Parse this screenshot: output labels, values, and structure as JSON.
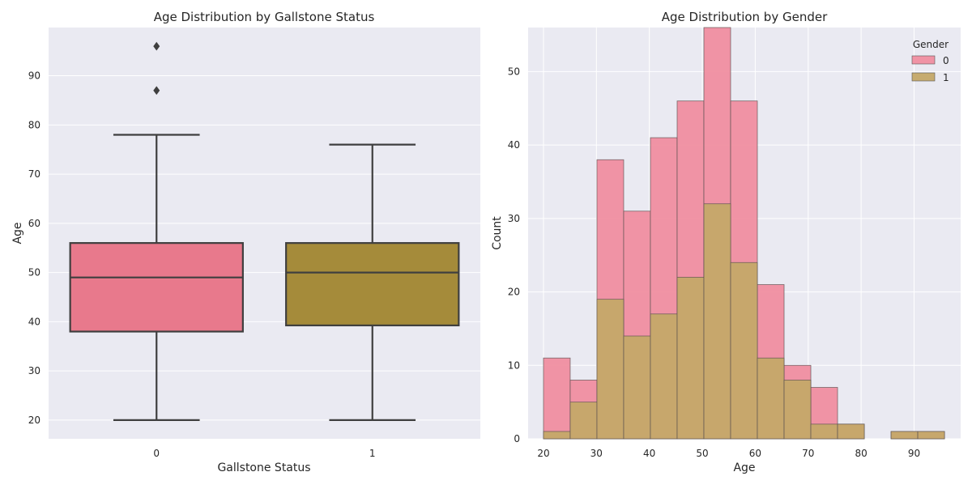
{
  "chart_data": [
    {
      "type": "box",
      "title": "Age Distribution by Gallstone Status",
      "xlabel": "Gallstone Status",
      "ylabel": "Age",
      "categories": [
        "0",
        "1"
      ],
      "ylim": [
        16.2,
        99.8
      ],
      "yticks": [
        20,
        30,
        40,
        50,
        60,
        70,
        80,
        90
      ],
      "grid": true,
      "boxes": [
        {
          "category": "0",
          "color": "#e8798c",
          "whisker_low": 20,
          "q1": 38,
          "median": 49,
          "q3": 56,
          "whisker_high": 78,
          "outliers": [
            87,
            96
          ]
        },
        {
          "category": "1",
          "color": "#a58b3a",
          "whisker_low": 20,
          "q1": 39.25,
          "median": 50,
          "q3": 56,
          "whisker_high": 76,
          "outliers": []
        }
      ]
    },
    {
      "type": "histogram",
      "title": "Age Distribution by Gender",
      "xlabel": "Age",
      "ylabel": "Count",
      "xlim": [
        17.1,
        98.8
      ],
      "ylim": [
        0,
        56
      ],
      "xticks": [
        20,
        30,
        40,
        50,
        60,
        70,
        80,
        90
      ],
      "yticks": [
        0,
        10,
        20,
        30,
        40,
        50
      ],
      "grid": true,
      "legend": {
        "title": "Gender",
        "placement": "top-right"
      },
      "bin_edges": [
        20,
        25.05,
        30.1,
        35.15,
        40.2,
        45.25,
        50.3,
        55.35,
        60.4,
        65.45,
        70.5,
        75.55,
        80.6,
        85.65,
        90.7,
        95.75
      ],
      "series": [
        {
          "name": "0",
          "color": "#f08ea0",
          "values": [
            11,
            8,
            38,
            31,
            41,
            46,
            56,
            46,
            21,
            10,
            7,
            2,
            0,
            1,
            1
          ]
        },
        {
          "name": "1",
          "color": "#c4a868",
          "values": [
            1,
            5,
            19,
            14,
            17,
            22,
            32,
            24,
            11,
            8,
            2,
            2,
            0,
            1,
            1
          ]
        }
      ]
    }
  ]
}
